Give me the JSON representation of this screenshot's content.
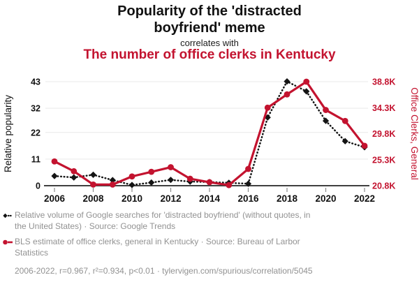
{
  "header": {
    "title_line1": "Popularity of the 'distracted",
    "title_line2": "boyfriend' meme",
    "connector": "correlates with",
    "subtitle": "The number of office clerks in Kentucky"
  },
  "colors": {
    "accent_red": "#c3132f",
    "series_black": "#141414",
    "grid": "#e9e9e9",
    "axis_line": "#404040",
    "tick_mark": "#8a8a8a",
    "tick_label_black": "#111111",
    "legend_text": "#929292"
  },
  "chart_data": {
    "type": "line",
    "x": [
      2006,
      2007,
      2008,
      2009,
      2010,
      2011,
      2012,
      2013,
      2014,
      2015,
      2016,
      2017,
      2018,
      2019,
      2020,
      2021,
      2022
    ],
    "x_tick_labels": [
      "2006",
      "2008",
      "2010",
      "2012",
      "2014",
      "2016",
      "2018",
      "2020",
      "2022"
    ],
    "series": [
      {
        "name": "Relative volume of Google searches for 'distracted boyfriend'",
        "axis": "left",
        "style": "dotted-diamond",
        "color": "#141414",
        "values": [
          4.0,
          3.4,
          4.5,
          2.3,
          0.3,
          1.3,
          2.4,
          1.7,
          1.5,
          1.2,
          0.8,
          28.2,
          43.1,
          39.0,
          26.8,
          18.4,
          15.9
        ]
      },
      {
        "name": "BLS estimate of office clerks, general in Kentucky",
        "axis": "right",
        "style": "solid-circle",
        "color": "#c3132f",
        "values": [
          25.0,
          23.3,
          21.0,
          21.0,
          22.4,
          23.2,
          24.0,
          22.0,
          21.4,
          20.9,
          23.7,
          34.3,
          36.6,
          38.8,
          33.9,
          32.0,
          27.7
        ]
      }
    ],
    "left_axis": {
      "label": "Relative popularity",
      "ticks": [
        0,
        11,
        22,
        32,
        43
      ],
      "tick_labels": [
        "0",
        "11",
        "22",
        "32",
        "43"
      ],
      "range": [
        0,
        43
      ]
    },
    "right_axis": {
      "label": "Office Clerks, General",
      "ticks": [
        20.8,
        25.3,
        29.8,
        34.3,
        38.8
      ],
      "tick_labels": [
        "20.8K",
        "25.3K",
        "29.8K",
        "34.3K",
        "38.8K"
      ],
      "range": [
        20.8,
        38.8
      ],
      "unit": "K"
    },
    "grid": true,
    "legend_position": "bottom"
  },
  "legend": {
    "items": [
      {
        "marker": "black-diamond-dotted",
        "text": "Relative volume of Google searches for 'distracted boyfriend' (without quotes, in the United States) · Source: Google Trends"
      },
      {
        "marker": "red-circle-solid",
        "text": "BLS estimate of office clerks, general in Kentucky · Source: Bureau of Larbor Statistics"
      }
    ],
    "footer": "2006-2022, r=0.967, r²=0.934, p<0.01 · tylervigen.com/spurious/correlation/5045"
  }
}
